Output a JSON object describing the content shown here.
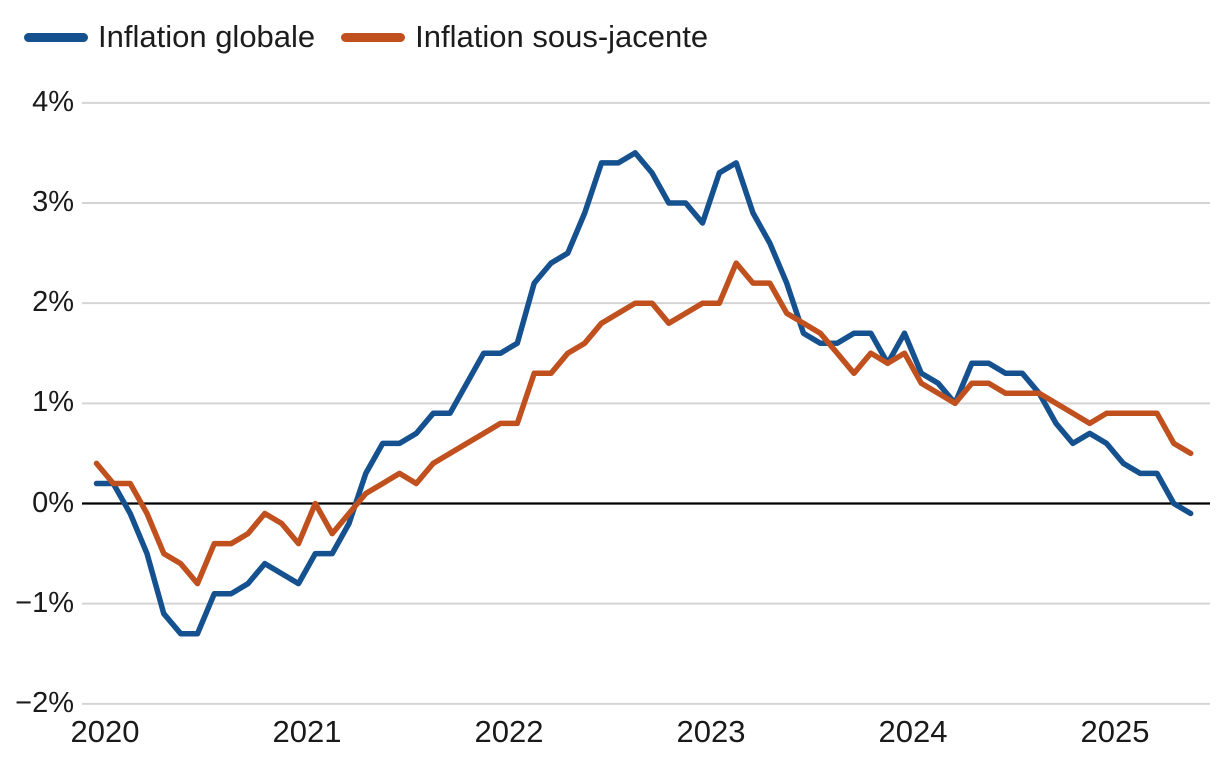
{
  "legend": {
    "items": [
      {
        "label": "Inflation globale",
        "color": "#15518f"
      },
      {
        "label": "Inflation sous-jacente",
        "color": "#c0511f"
      }
    ]
  },
  "y_axis": {
    "tick_labels": [
      "4%",
      "3%",
      "2%",
      "1%",
      "0%",
      "−1%",
      "−2%"
    ],
    "tick_values": [
      4,
      3,
      2,
      1,
      0,
      -1,
      -2
    ]
  },
  "x_axis": {
    "tick_labels": [
      "2020",
      "2021",
      "2022",
      "2023",
      "2024",
      "2025"
    ]
  },
  "colors": {
    "headline_line": "#15518f",
    "core_line": "#c0511f",
    "gridline": "#d5d5d5",
    "zero_line": "#000000",
    "text": "#1a1a1a",
    "background": "#ffffff"
  },
  "chart_data": {
    "type": "line",
    "title": "",
    "xlabel": "",
    "ylabel": "",
    "ylim": [
      -2,
      4
    ],
    "yticks": [
      4,
      3,
      2,
      1,
      0,
      -1,
      -2
    ],
    "ytick_labels": [
      "4%",
      "3%",
      "2%",
      "1%",
      "0%",
      "−1%",
      "−2%"
    ],
    "xtick_labels": [
      "2020",
      "2021",
      "2022",
      "2023",
      "2024",
      "2025"
    ],
    "grid": "horizontal",
    "legend_position": "top-left",
    "frequency": "monthly",
    "x": [
      "2019-12",
      "2020-01",
      "2020-02",
      "2020-03",
      "2020-04",
      "2020-05",
      "2020-06",
      "2020-07",
      "2020-08",
      "2020-09",
      "2020-10",
      "2020-11",
      "2020-12",
      "2021-01",
      "2021-02",
      "2021-03",
      "2021-04",
      "2021-05",
      "2021-06",
      "2021-07",
      "2021-08",
      "2021-09",
      "2021-10",
      "2021-11",
      "2021-12",
      "2022-01",
      "2022-02",
      "2022-03",
      "2022-04",
      "2022-05",
      "2022-06",
      "2022-07",
      "2022-08",
      "2022-09",
      "2022-10",
      "2022-11",
      "2022-12",
      "2023-01",
      "2023-02",
      "2023-03",
      "2023-04",
      "2023-05",
      "2023-06",
      "2023-07",
      "2023-08",
      "2023-09",
      "2023-10",
      "2023-11",
      "2023-12",
      "2024-01",
      "2024-02",
      "2024-03",
      "2024-04",
      "2024-05",
      "2024-06",
      "2024-07",
      "2024-08",
      "2024-09",
      "2024-10",
      "2024-11",
      "2024-12",
      "2025-01",
      "2025-02",
      "2025-03",
      "2025-04",
      "2025-05"
    ],
    "series": [
      {
        "name": "Inflation globale",
        "color": "#15518f",
        "unit": "%",
        "values": [
          0.2,
          0.2,
          -0.1,
          -0.5,
          -1.1,
          -1.3,
          -1.3,
          -0.9,
          -0.9,
          -0.8,
          -0.6,
          -0.7,
          -0.8,
          -0.5,
          -0.5,
          -0.2,
          0.3,
          0.6,
          0.6,
          0.7,
          0.9,
          0.9,
          1.2,
          1.5,
          1.5,
          1.6,
          2.2,
          2.4,
          2.5,
          2.9,
          3.4,
          3.4,
          3.5,
          3.3,
          3.0,
          3.0,
          2.8,
          3.3,
          3.4,
          2.9,
          2.6,
          2.2,
          1.7,
          1.6,
          1.6,
          1.7,
          1.7,
          1.4,
          1.7,
          1.3,
          1.2,
          1.0,
          1.4,
          1.4,
          1.3,
          1.3,
          1.1,
          0.8,
          0.6,
          0.7,
          0.6,
          0.4,
          0.3,
          0.3,
          0.0,
          -0.1
        ]
      },
      {
        "name": "Inflation sous-jacente",
        "color": "#c0511f",
        "unit": "%",
        "values": [
          0.4,
          0.2,
          0.2,
          -0.1,
          -0.5,
          -0.6,
          -0.8,
          -0.4,
          -0.4,
          -0.3,
          -0.1,
          -0.2,
          -0.4,
          0.0,
          -0.3,
          -0.1,
          0.1,
          0.2,
          0.3,
          0.2,
          0.4,
          0.5,
          0.6,
          0.7,
          0.8,
          0.8,
          1.3,
          1.3,
          1.5,
          1.6,
          1.8,
          1.9,
          2.0,
          2.0,
          1.8,
          1.9,
          2.0,
          2.0,
          2.4,
          2.2,
          2.2,
          1.9,
          1.8,
          1.7,
          1.5,
          1.3,
          1.5,
          1.4,
          1.5,
          1.2,
          1.1,
          1.0,
          1.2,
          1.2,
          1.1,
          1.1,
          1.1,
          1.0,
          0.9,
          0.8,
          0.9,
          0.9,
          0.9,
          0.9,
          0.6,
          0.5
        ]
      }
    ]
  }
}
